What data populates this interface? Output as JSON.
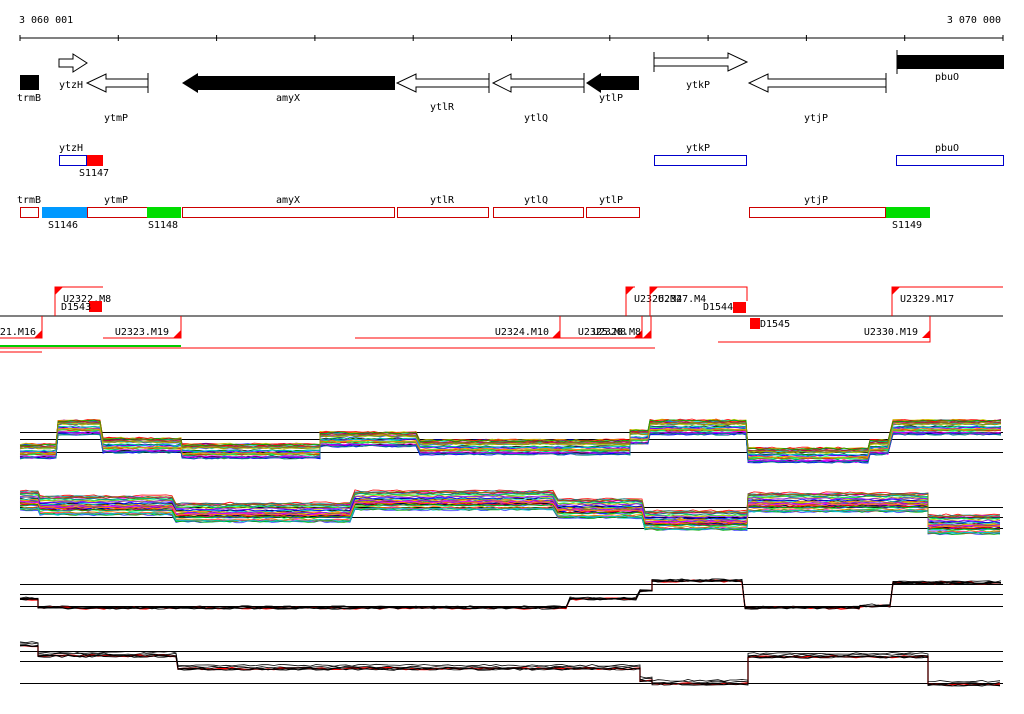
{
  "coordinates": {
    "start_label": "3 060 001",
    "end_label": "3 070 000"
  },
  "genes": [
    {
      "name": "trmB",
      "strand": "+",
      "filled": true
    },
    {
      "name": "ytzH",
      "strand": "+",
      "filled": false
    },
    {
      "name": "ytmP",
      "strand": "-",
      "filled": false
    },
    {
      "name": "amyX",
      "strand": "-",
      "filled": true
    },
    {
      "name": "ytlR",
      "strand": "-",
      "filled": false
    },
    {
      "name": "ytlQ",
      "strand": "-",
      "filled": false
    },
    {
      "name": "ytlP",
      "strand": "-",
      "filled": true
    },
    {
      "name": "ytkP",
      "strand": "+",
      "filled": false
    },
    {
      "name": "ytjP",
      "strand": "-",
      "filled": false
    },
    {
      "name": "pbuO",
      "strand": "+",
      "filled": true
    }
  ],
  "forward_units": [
    {
      "gene": "ytzH"
    },
    {
      "gene": "ytkP"
    },
    {
      "gene": "pbuO"
    }
  ],
  "forward_sites": [
    {
      "label": "S1147",
      "color": "#ff0000"
    }
  ],
  "reverse_units": [
    {
      "gene": "trmB"
    },
    {
      "gene": "ytmP"
    },
    {
      "gene": "amyX"
    },
    {
      "gene": "ytlR"
    },
    {
      "gene": "ytlQ"
    },
    {
      "gene": "ytlP"
    },
    {
      "gene": "ytjP"
    }
  ],
  "reverse_sites": [
    {
      "label": "S1146",
      "color": "#0099ff"
    },
    {
      "label": "S1148",
      "color": "#00dd00"
    },
    {
      "label": "S1149",
      "color": "#00dd00"
    }
  ],
  "segments_upper": [
    {
      "label": "U2322.M8"
    },
    {
      "label": "U2326.M4"
    },
    {
      "label": "U2327.M4"
    },
    {
      "label": "U2329.M17"
    }
  ],
  "segments_lower": [
    {
      "label": "21.M16"
    },
    {
      "label": "U2323.M19"
    },
    {
      "label": "U2324.M10"
    },
    {
      "label": "U2325.M8"
    },
    {
      "label": "U2328.M8"
    },
    {
      "label": "U2330.M19"
    }
  ],
  "down_sites": [
    {
      "label": "D1543"
    },
    {
      "label": "D1544"
    },
    {
      "label": "D1545"
    }
  ],
  "colors": {
    "gene_fill": "#000000",
    "unit_border_forward": "#0000cc",
    "unit_border_reverse": "#cc0000",
    "segment": "#ff0000",
    "highlight_trace": "#ff0000",
    "baseline": "#000000"
  }
}
